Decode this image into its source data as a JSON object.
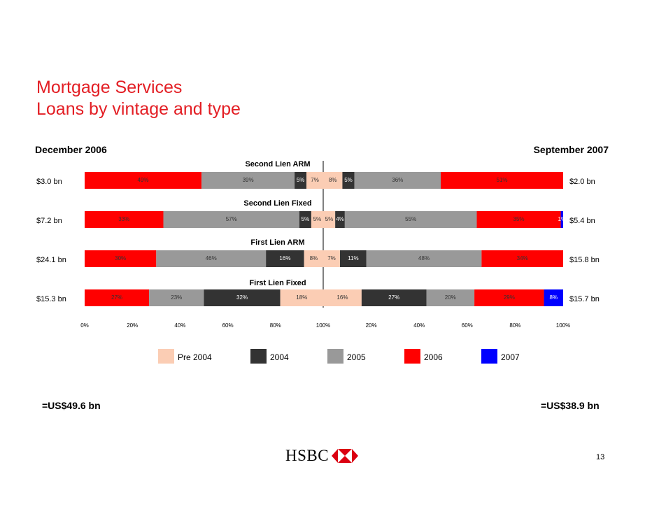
{
  "title_line1": "Mortgage Services",
  "title_line2": "Loans by vintage and type",
  "left_header": "December 2006",
  "right_header": "September 2007",
  "left_total": "=US$49.6 bn",
  "right_total": "=US$38.9 bn",
  "logo_text": "HSBC",
  "page_number": "13",
  "colors": {
    "pre2004": "#fbcdb4",
    "y2004": "#333333",
    "y2005": "#999999",
    "y2006": "#ff0000",
    "y2007": "#0000ff",
    "title": "#e31e24"
  },
  "chart_data": {
    "type": "bar",
    "orientation": "horizontal",
    "stacked": true,
    "x_ticks_left": [
      "0%",
      "20%",
      "40%",
      "60%",
      "80%",
      "100%"
    ],
    "x_ticks_right": [
      "20%",
      "40%",
      "60%",
      "80%",
      "100%"
    ],
    "legend": [
      "Pre 2004",
      "2004",
      "2005",
      "2006",
      "2007"
    ],
    "legend_position": "bottom",
    "categories": [
      "Second Lien ARM",
      "Second Lien Fixed",
      "First Lien ARM",
      "First Lien Fixed"
    ],
    "left_panel": {
      "period": "December 2006",
      "order": [
        "2006",
        "2005",
        "2004",
        "Pre 2004"
      ],
      "rows": [
        {
          "total": "$3.0 bn",
          "values": [
            49,
            39,
            5,
            7
          ],
          "labels": [
            "49%",
            "39%",
            "5%",
            "7%"
          ]
        },
        {
          "total": "$7.2 bn",
          "values": [
            33,
            57,
            5,
            5
          ],
          "labels": [
            "33%",
            "57%",
            "5%",
            "5%"
          ]
        },
        {
          "total": "$24.1 bn",
          "values": [
            30,
            46,
            16,
            8
          ],
          "labels": [
            "30%",
            "46%",
            "16%",
            "8%"
          ]
        },
        {
          "total": "$15.3 bn",
          "values": [
            27,
            23,
            32,
            18
          ],
          "labels": [
            "27%",
            "23%",
            "32%",
            "18%"
          ]
        }
      ]
    },
    "right_panel": {
      "period": "September 2007",
      "order": [
        "Pre 2004",
        "2004",
        "2005",
        "2006",
        "2007"
      ],
      "rows": [
        {
          "total": "$2.0 bn",
          "values": [
            8,
            5,
            36,
            51,
            0
          ],
          "labels": [
            "8%",
            "5%",
            "36%",
            "51%",
            ""
          ]
        },
        {
          "total": "$5.4 bn",
          "values": [
            5,
            4,
            55,
            35,
            1
          ],
          "labels": [
            "5%",
            "4%",
            "55%",
            "35%",
            "1%"
          ]
        },
        {
          "total": "$15.8 bn",
          "values": [
            7,
            11,
            48,
            34,
            0
          ],
          "labels": [
            "7%",
            "11%",
            "48%",
            "34%",
            ""
          ]
        },
        {
          "total": "$15.7 bn",
          "values": [
            16,
            27,
            20,
            29,
            8
          ],
          "labels": [
            "16%",
            "27%",
            "20%",
            "29%",
            "8%"
          ]
        }
      ]
    }
  }
}
